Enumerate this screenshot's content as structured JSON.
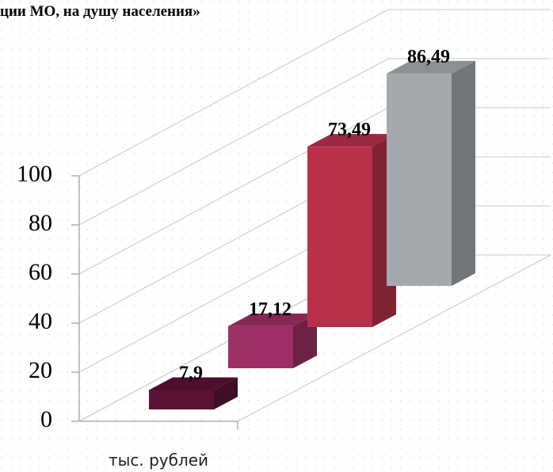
{
  "chart_data": {
    "type": "bar3d",
    "title": "ции МО, на душу населения»",
    "x_label": "тыс. рублей",
    "values": [
      7.9,
      17.12,
      73.49,
      86.49
    ],
    "value_labels": [
      "7,9",
      "17,12",
      "73,49",
      "86,49"
    ],
    "colors": [
      "#5a1235",
      "#9c2f63",
      "#b8304a",
      "#a3a9ad"
    ],
    "ylim": [
      0,
      100
    ],
    "yticks": [
      0,
      20,
      40,
      60,
      80,
      100
    ],
    "grid": true
  }
}
